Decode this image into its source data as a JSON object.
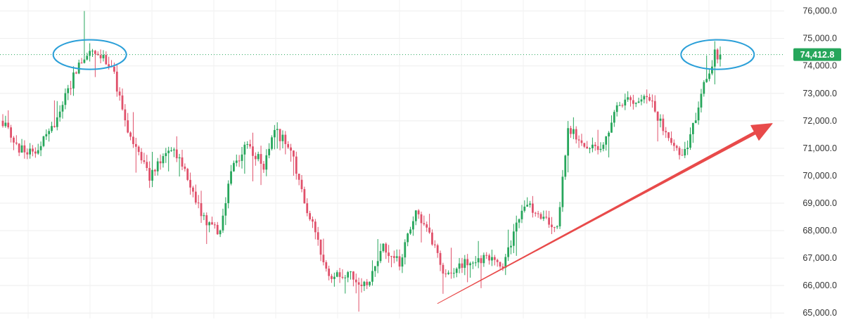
{
  "chart_data": {
    "type": "candlestick",
    "ylim": [
      64800,
      76400
    ],
    "y_ticks": [
      65000,
      66000,
      67000,
      68000,
      69000,
      70000,
      71000,
      72000,
      73000,
      74000,
      75000,
      76000
    ],
    "y_tick_labels": [
      "65,000.0",
      "66,000.0",
      "67,000.0",
      "68,000.0",
      "69,000.0",
      "70,000.0",
      "71,000.0",
      "72,000.0",
      "73,000.0",
      "74,000.0",
      "75,000.0",
      "76,000.0"
    ],
    "current_price": 74412.8,
    "current_price_label": "74,412.8",
    "grid": true,
    "up_color": "#26a65b",
    "down_color": "#e0506a",
    "price_line_color": "#26a65b",
    "highlight_color": "#2a9fd8",
    "arrow_color": "#e84a4a",
    "anchors": [
      [
        0,
        72000
      ],
      [
        6,
        71000
      ],
      [
        12,
        70800
      ],
      [
        18,
        71700
      ],
      [
        26,
        73600
      ],
      [
        32,
        74600
      ],
      [
        40,
        74100
      ],
      [
        46,
        71500
      ],
      [
        54,
        70000
      ],
      [
        62,
        70900
      ],
      [
        66,
        70500
      ],
      [
        74,
        68400
      ],
      [
        80,
        67900
      ],
      [
        84,
        70100
      ],
      [
        90,
        71200
      ],
      [
        96,
        70300
      ],
      [
        100,
        71700
      ],
      [
        106,
        70900
      ],
      [
        112,
        68800
      ],
      [
        120,
        66300
      ],
      [
        128,
        66400
      ],
      [
        134,
        66000
      ],
      [
        140,
        67500
      ],
      [
        146,
        66800
      ],
      [
        152,
        68700
      ],
      [
        158,
        67600
      ],
      [
        162,
        66400
      ],
      [
        170,
        66800
      ],
      [
        178,
        67000
      ],
      [
        184,
        66800
      ],
      [
        192,
        69000
      ],
      [
        200,
        68400
      ],
      [
        204,
        68000
      ],
      [
        208,
        71700
      ],
      [
        214,
        71200
      ],
      [
        220,
        71000
      ],
      [
        226,
        72400
      ],
      [
        232,
        72800
      ],
      [
        238,
        72900
      ],
      [
        242,
        71900
      ],
      [
        248,
        70900
      ],
      [
        252,
        70900
      ],
      [
        258,
        73400
      ],
      [
        262,
        74400
      ],
      [
        264,
        74413
      ]
    ],
    "pivot_count": 265,
    "seed": 1337,
    "volatility": 280,
    "highlights": [
      {
        "label": "left-top",
        "x_index": 32,
        "price": 74412.8
      },
      {
        "label": "right-top",
        "x_index": 262,
        "price": 74412.8
      }
    ],
    "trend_arrow": {
      "from": {
        "index": 160,
        "price": 65500
      },
      "to": {
        "index": 285,
        "price": 71800
      }
    }
  }
}
